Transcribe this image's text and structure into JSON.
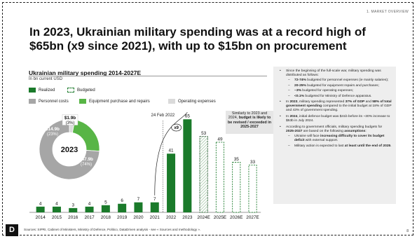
{
  "header": {
    "section": "1. MARKET OVERVIEW"
  },
  "headline": "In 2023, Ukrainian military spending was at a record high of $65bn (x9 since 2021), with up to $15bn on procurement",
  "chart_title": "Ukrainian military spending 2014-2027E",
  "chart_subtitle": "In bn current USD",
  "legend": {
    "realized": "Realized",
    "budgeted": "Budgeted",
    "personnel": "Personnel costs",
    "equipment": "Equipment purchase and repairs",
    "operating": "Operating expenses"
  },
  "donut": {
    "center_label": "2023",
    "segments": [
      {
        "name": "Operating expenses",
        "value": 1.9,
        "label": "$1.9b",
        "pct": "(3%)",
        "color": "#dadada"
      },
      {
        "name": "Equipment purchase and repairs",
        "value": 14.9,
        "label": "$14.9b",
        "pct": "(23%)",
        "color": "#58b546"
      },
      {
        "name": "Personnel costs",
        "value": 47.9,
        "label": "$47.9b",
        "pct": "(74%)",
        "color": "#a6a6a6"
      }
    ]
  },
  "annotations": {
    "date": "24 Feb 2022",
    "multiplier": "x9",
    "callout_plain": "Similarly to 2023 and 2024, ",
    "callout_bold": "budget is likely to be revised / exceeded in 2025-2027"
  },
  "chart_data": {
    "type": "bar",
    "title": "Ukrainian military spending 2014-2027E",
    "ylabel": "In bn current USD",
    "categories": [
      "2014",
      "2015",
      "2016",
      "2017",
      "2018",
      "2019",
      "2020",
      "2021",
      "2022",
      "2023",
      "2024E",
      "2025E",
      "2026E",
      "2027E"
    ],
    "values": [
      4,
      4,
      3,
      4,
      5,
      6,
      7,
      7,
      41,
      65,
      53,
      49,
      35,
      33
    ],
    "status": [
      "realized",
      "realized",
      "realized",
      "realized",
      "realized",
      "realized",
      "realized",
      "realized",
      "realized",
      "realized",
      "budgeted",
      "budgeted",
      "budgeted",
      "budgeted"
    ],
    "ylim": [
      0,
      70
    ],
    "grid": false,
    "legend": "top-left"
  },
  "notes": [
    {
      "text": "Since the beginning of the full-scale war, military spending was distributed as follows:",
      "sub": [
        {
          "bold": "72-74%",
          "text": " budgeted for personnel expenses (ie mainly salaries);"
        },
        {
          "bold": "20-25%",
          "text": " budgeted for equipment repairs and purchases;"
        },
        {
          "bold": "~3%",
          "text": " budgeted for operating expenses;"
        },
        {
          "bold": "<0.1%",
          "text": " budgeted for Ministry of Defence apparatus."
        }
      ]
    },
    {
      "pre": "In ",
      "bold": "2023",
      "mid": ", military spending represented ",
      "bold2": "37% of GDP",
      "mid2": " and ",
      "bold3": "58% of total government spending",
      "post": " compared to the initial budget at 18% of GDP and 43% of government spending."
    },
    {
      "pre": "In ",
      "bold": "2024",
      "post": ", initial defence budget was $41b before its ~30% increase to $53b in July 2024."
    },
    {
      "pre": "According to government officials, military spending budgets for ",
      "bold": "2025-2027",
      "mid": " are based on the following ",
      "bold2": "assumptions",
      "post": ":",
      "sub2": [
        {
          "pre": "Ukraine will face ",
          "bold": "increasing difficulty to cover its budget deficit",
          "post": " with external support."
        },
        {
          "pre": "Military action is expected to last ",
          "bold": "at least until the end of 2025",
          "post": "."
        }
      ]
    }
  ],
  "footer": {
    "sources": "Sources: SIPRI, Cabinet of Ministers, Ministry of Defence, Politico, DataDriven analysis - see « Sources and methodology ».",
    "logo": "D",
    "page": "8"
  }
}
